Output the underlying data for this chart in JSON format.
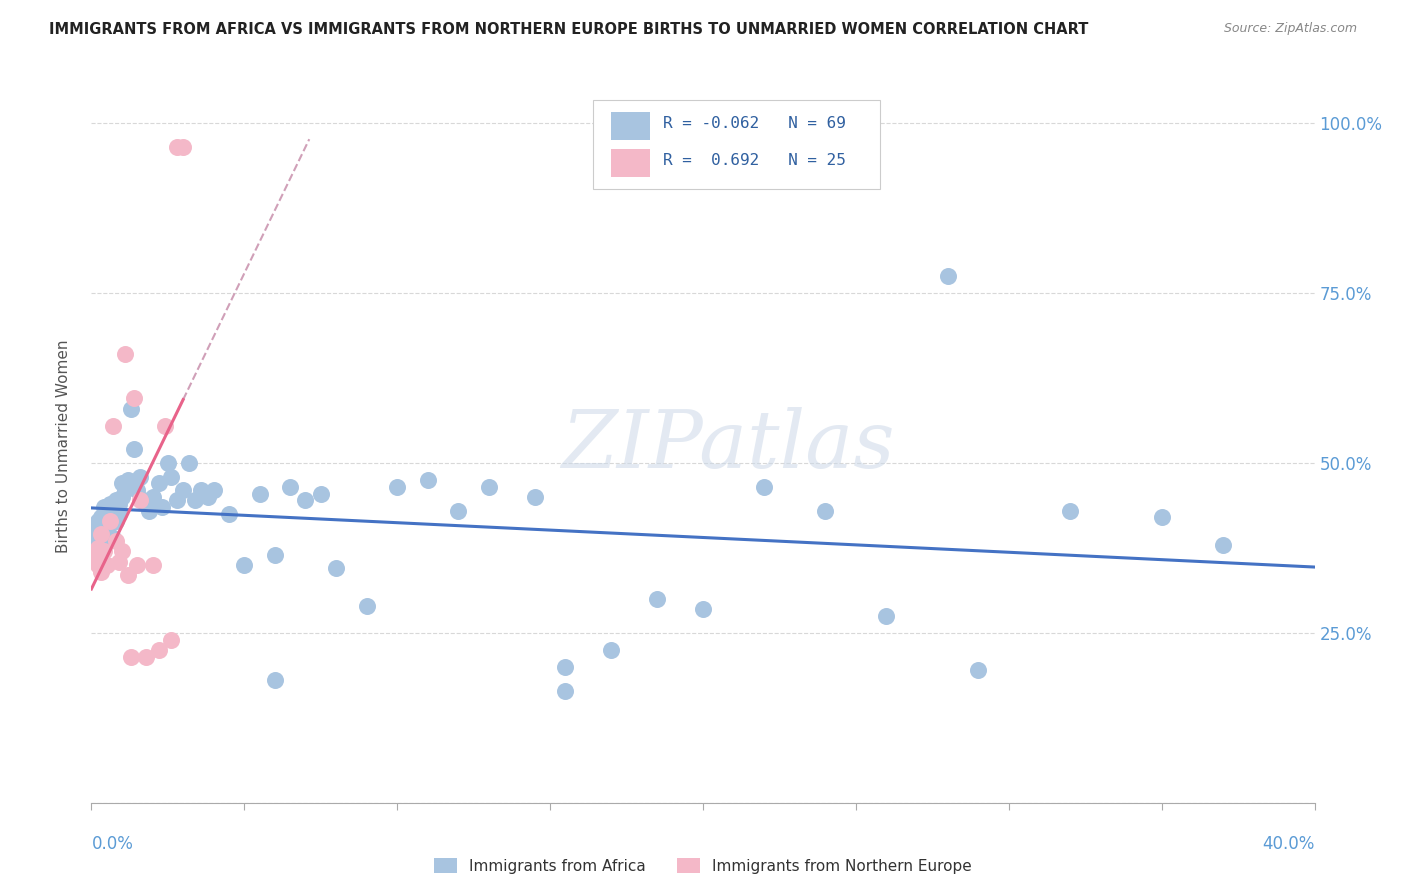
{
  "title": "IMMIGRANTS FROM AFRICA VS IMMIGRANTS FROM NORTHERN EUROPE BIRTHS TO UNMARRIED WOMEN CORRELATION CHART",
  "source": "Source: ZipAtlas.com",
  "ylabel": "Births to Unmarried Women",
  "watermark": "ZIPatlas",
  "legend_r1": "R = -0.062",
  "legend_n1": "N = 69",
  "legend_r2": "R =  0.692",
  "legend_n2": "N = 25",
  "legend_label1": "Immigrants from Africa",
  "legend_label2": "Immigrants from Northern Europe",
  "color_blue": "#a8c4e0",
  "color_pink": "#f4b8c8",
  "trendline_blue": "#4472c4",
  "trendline_pink": "#e8638a",
  "trendline_pink_ext_color": "#d0a0b8",
  "blue_scatter_x": [
    0.001,
    0.001,
    0.002,
    0.002,
    0.003,
    0.003,
    0.004,
    0.004,
    0.005,
    0.005,
    0.006,
    0.006,
    0.007,
    0.007,
    0.008,
    0.008,
    0.009,
    0.009,
    0.01,
    0.01,
    0.011,
    0.012,
    0.013,
    0.014,
    0.015,
    0.016,
    0.017,
    0.018,
    0.019,
    0.02,
    0.022,
    0.023,
    0.025,
    0.026,
    0.028,
    0.03,
    0.032,
    0.034,
    0.036,
    0.038,
    0.04,
    0.045,
    0.05,
    0.055,
    0.06,
    0.065,
    0.07,
    0.075,
    0.08,
    0.09,
    0.1,
    0.11,
    0.12,
    0.13,
    0.145,
    0.155,
    0.17,
    0.185,
    0.2,
    0.22,
    0.24,
    0.26,
    0.29,
    0.32,
    0.35,
    0.37,
    0.28,
    0.155,
    0.06
  ],
  "blue_scatter_y": [
    0.405,
    0.395,
    0.415,
    0.385,
    0.42,
    0.4,
    0.435,
    0.39,
    0.425,
    0.405,
    0.44,
    0.41,
    0.43,
    0.39,
    0.445,
    0.415,
    0.44,
    0.425,
    0.47,
    0.45,
    0.46,
    0.475,
    0.58,
    0.52,
    0.46,
    0.48,
    0.445,
    0.44,
    0.43,
    0.45,
    0.47,
    0.435,
    0.5,
    0.48,
    0.445,
    0.46,
    0.5,
    0.445,
    0.46,
    0.45,
    0.46,
    0.425,
    0.35,
    0.455,
    0.365,
    0.465,
    0.445,
    0.455,
    0.345,
    0.29,
    0.465,
    0.475,
    0.43,
    0.465,
    0.45,
    0.2,
    0.225,
    0.3,
    0.285,
    0.465,
    0.43,
    0.275,
    0.195,
    0.43,
    0.42,
    0.38,
    0.775,
    0.165,
    0.18
  ],
  "pink_scatter_x": [
    0.001,
    0.002,
    0.002,
    0.003,
    0.003,
    0.004,
    0.005,
    0.006,
    0.007,
    0.008,
    0.009,
    0.01,
    0.011,
    0.012,
    0.013,
    0.014,
    0.015,
    0.016,
    0.018,
    0.02,
    0.022,
    0.024,
    0.026,
    0.028,
    0.03
  ],
  "pink_scatter_y": [
    0.36,
    0.35,
    0.375,
    0.34,
    0.395,
    0.37,
    0.35,
    0.415,
    0.555,
    0.385,
    0.355,
    0.37,
    0.66,
    0.335,
    0.215,
    0.595,
    0.35,
    0.445,
    0.215,
    0.35,
    0.225,
    0.555,
    0.24,
    0.965,
    0.965
  ],
  "xlim": [
    0.0,
    0.4
  ],
  "ylim": [
    0.0,
    1.05
  ],
  "yticks": [
    0.0,
    0.25,
    0.5,
    0.75,
    1.0
  ],
  "ytick_labels_right": [
    "",
    "25.0%",
    "50.0%",
    "75.0%",
    "100.0%"
  ]
}
